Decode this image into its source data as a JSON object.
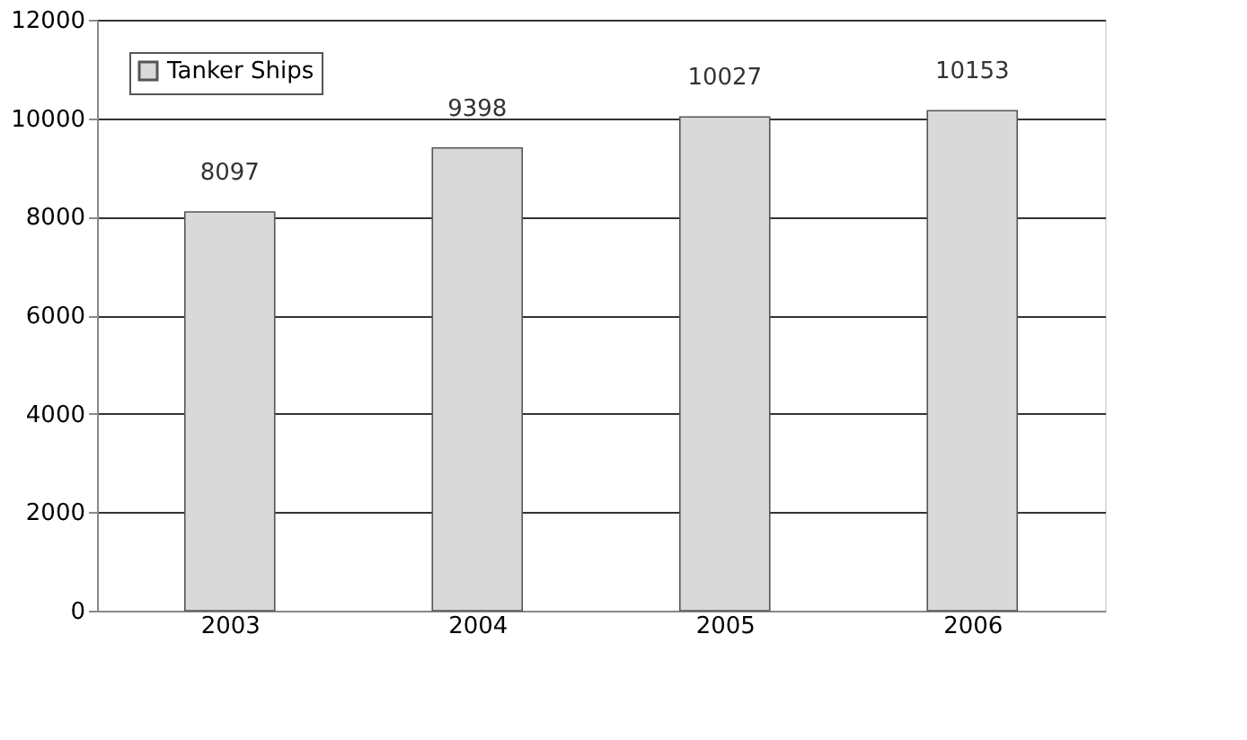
{
  "chart_data": {
    "type": "bar",
    "categories": [
      "2003",
      "2004",
      "2005",
      "2006"
    ],
    "series": [
      {
        "name": "Tanker Ships",
        "color": "#d9d9d9",
        "values": [
          8097,
          9398,
          10027,
          10153
        ]
      }
    ],
    "ylim": [
      0,
      12000
    ],
    "yticks": [
      0,
      2000,
      4000,
      6000,
      8000,
      10000,
      12000
    ],
    "grid": "y",
    "legend": "top left",
    "data_labels": true
  }
}
